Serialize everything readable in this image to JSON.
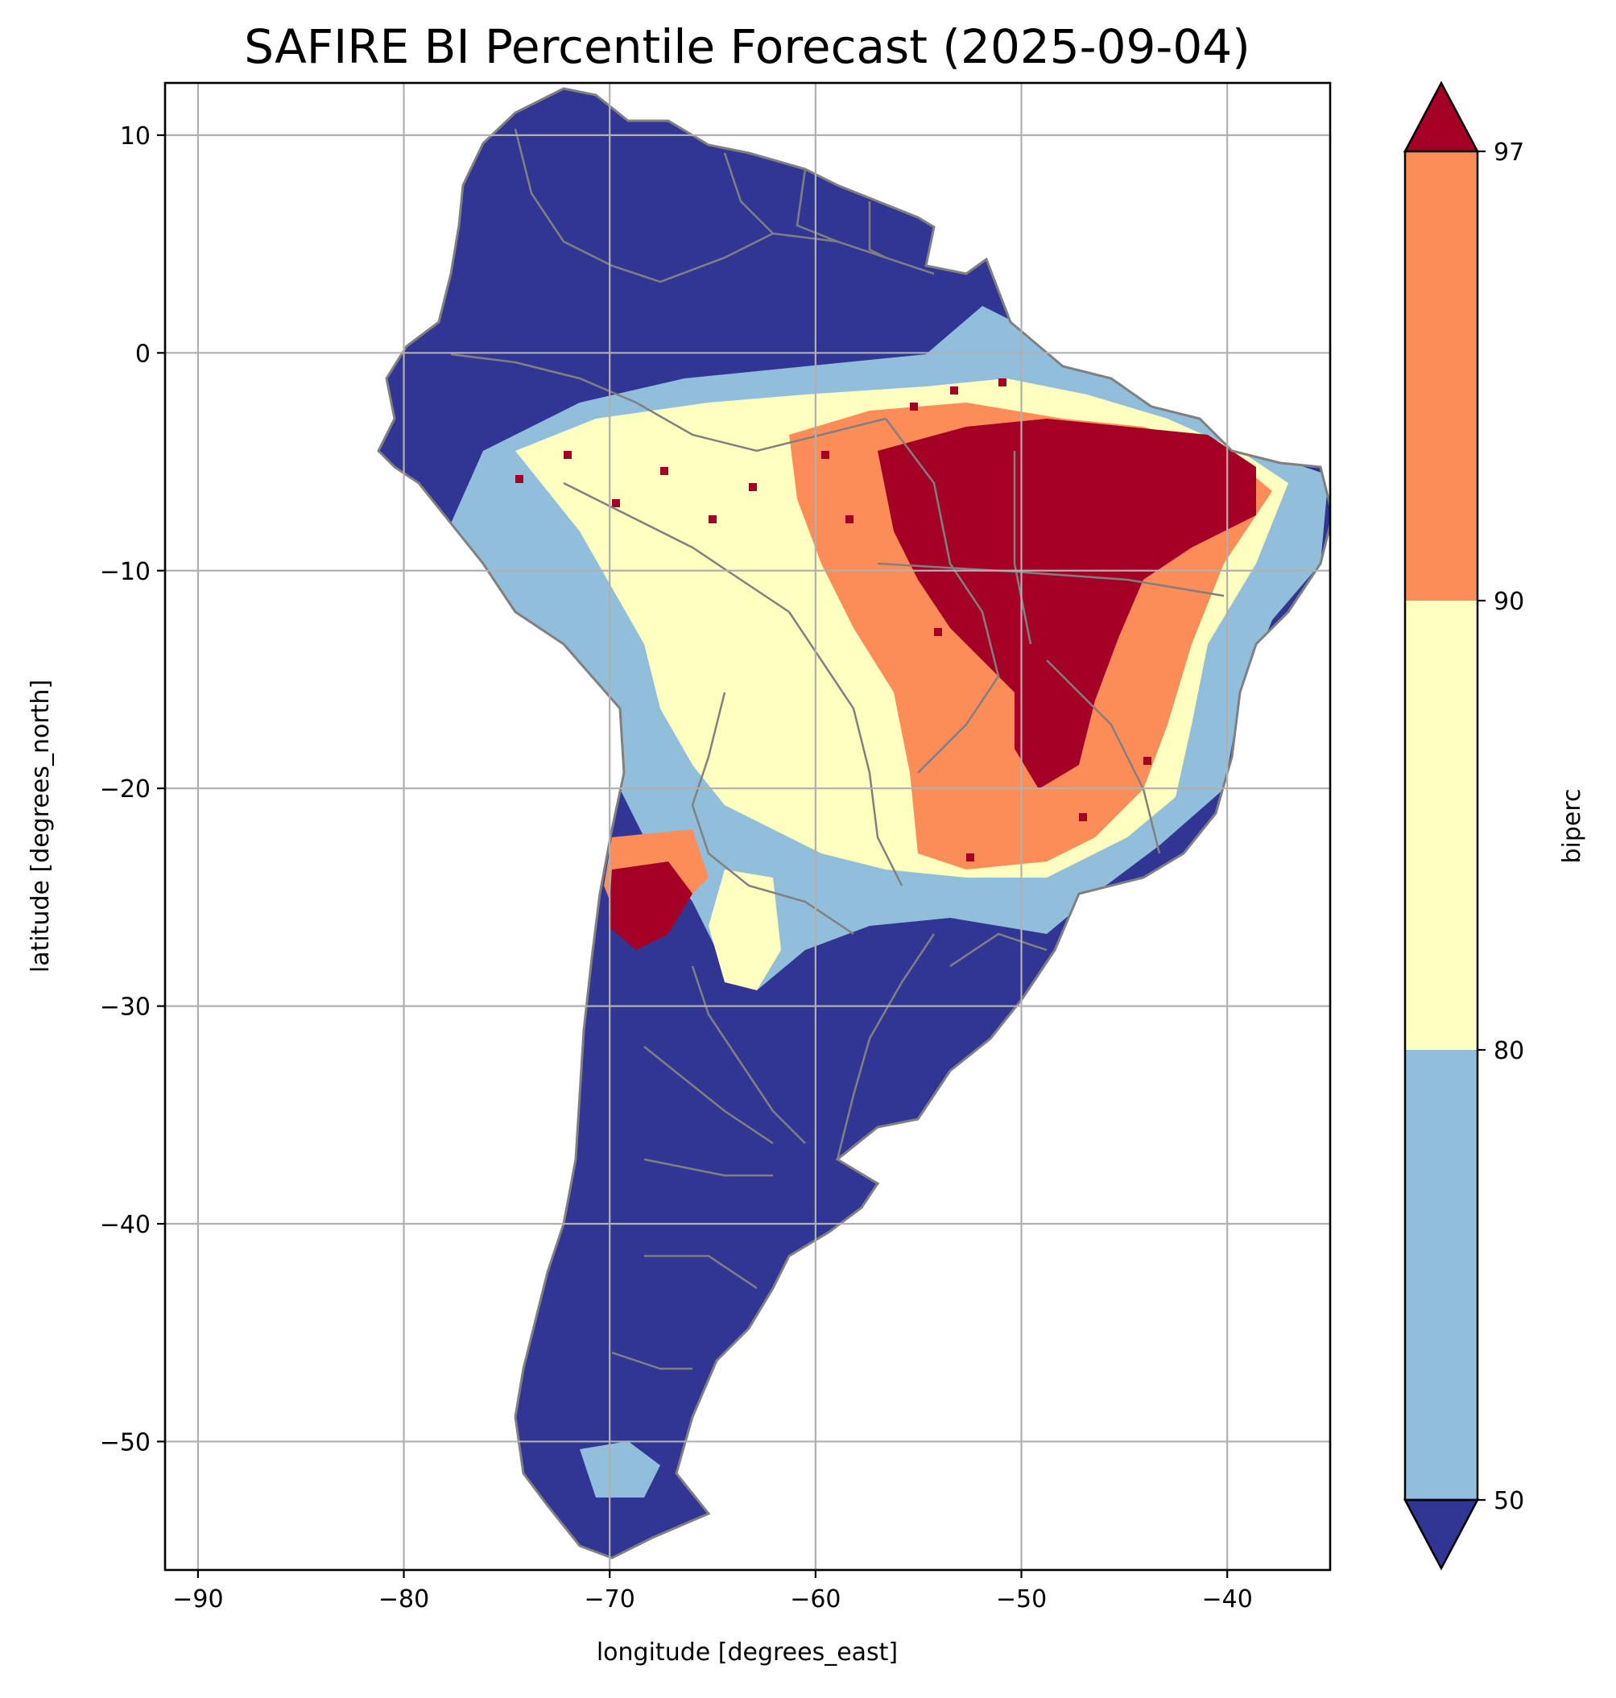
{
  "title": "SAFIRE BI Percentile Forecast (2025-09-04)",
  "xlabel": "longitude [degrees_east]",
  "ylabel": "latitude [degrees_north]",
  "colorbar_label": "biperc",
  "map": {
    "xlim": [
      -91.6,
      -35.0
    ],
    "ylim": [
      -55.9,
      12.4
    ],
    "x_ticks": [
      -90,
      -80,
      -70,
      -60,
      -50,
      -40
    ],
    "x_tick_labels": [
      "−90",
      "−80",
      "−70",
      "−60",
      "−50",
      "−40"
    ],
    "y_ticks": [
      10,
      0,
      -10,
      -20,
      -30,
      -40,
      -50
    ],
    "y_tick_labels": [
      "10",
      "0",
      "−10",
      "−20",
      "−30",
      "−40",
      "−50"
    ],
    "grid": true
  },
  "colorbar": {
    "ticks": [
      50,
      80,
      90,
      97
    ],
    "tick_labels": [
      "50",
      "80",
      "90",
      "97"
    ],
    "bins": [
      {
        "range": "<50",
        "color": "#313695"
      },
      {
        "range": "50-80",
        "color": "#91bfdb"
      },
      {
        "range": "80-90",
        "color": "#ffffbf"
      },
      {
        "range": "90-97",
        "color": "#fc8d59"
      },
      {
        "range": ">97",
        "color": "#a50026"
      }
    ]
  },
  "colors": {
    "below50": "#313695",
    "p50_80": "#91bfdb",
    "p80_90": "#ffffbf",
    "p90_97": "#fc8d59",
    "above97": "#a50026",
    "borders": "#808080"
  }
}
